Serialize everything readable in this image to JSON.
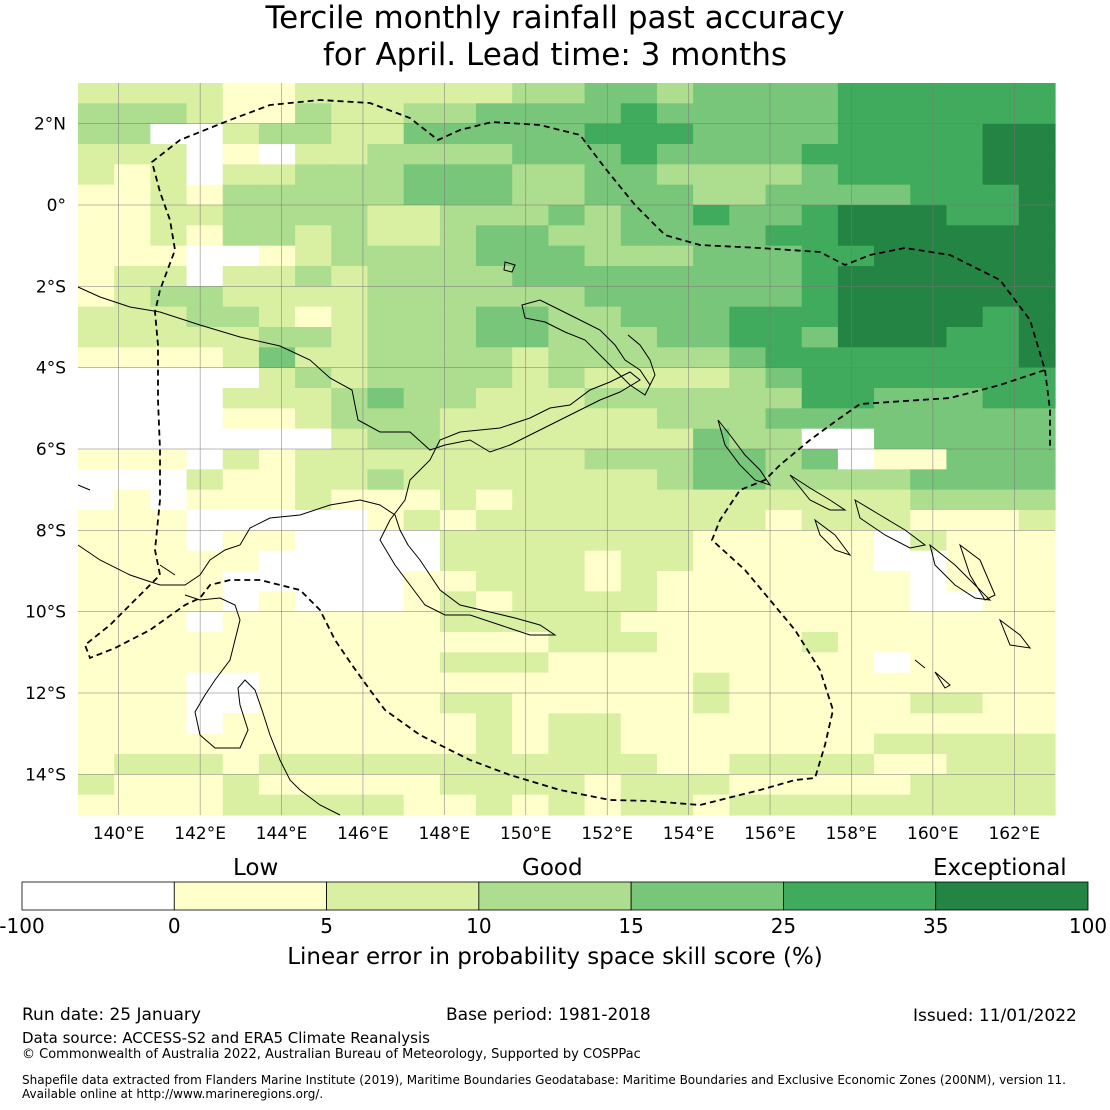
{
  "title_line1": "Tercile monthly rainfall past accuracy",
  "title_line2": "for April. Lead time: 3 months",
  "map_data": {
    "lon_range": [
      139,
      163
    ],
    "lat_range": [
      -15,
      3
    ],
    "lon_ticks": [
      "140°E",
      "142°E",
      "144°E",
      "146°E",
      "148°E",
      "150°E",
      "152°E",
      "154°E",
      "156°E",
      "158°E",
      "160°E",
      "162°E"
    ],
    "lat_ticks": [
      "2°N",
      "0°",
      "2°S",
      "4°S",
      "6°S",
      "8°S",
      "10°S",
      "12°S",
      "14°S"
    ],
    "class_grid": [
      "222211222222334434444555555",
      "333211322334444544444555555",
      "330023322444445554444555566",
      "222010223333444544445555566",
      "212022333444334433334555566",
      "112133333444334443344445556",
      "112233332233343445445666556",
      "112133232234433444455666666",
      "111001233334443334445566666",
      "122022323333444444445666666",
      "123322223333334444445666666",
      "222332123334433444555666656",
      "222223323334433344554666556",
      "111124223333233333455555556",
      "000002323333232222345555555",
      "000022234332223333335544455",
      "000011233322222233344444444",
      "000000023322222224330044444",
      "111021222222223334434011444",
      "000211223222222234433334444",
      "010111211121222222222223333",
      "111000001212222222212221112",
      "111011000022222221111102111",
      "111110000022221221111100111",
      "111100000112221211111110111",
      "111101000121222211111110011",
      "111011111122222111111111111",
      "111111111111122211112111111",
      "111111111122211111111101111",
      "111001111111111112111111111",
      "111001111122111112111112211",
      "111011111112122111111111111",
      "111111111112122111111122222",
      "122212222222222211222211222",
      "211121111122221222111112222",
      "111122222112121221222222222"
    ]
  },
  "colorbar": {
    "category_low": "Low",
    "category_good": "Good",
    "category_exceptional": "Exceptional",
    "bounds": [
      "-100",
      "0",
      "5",
      "10",
      "15",
      "25",
      "35",
      "100"
    ],
    "colors": [
      "#ffffff",
      "#ffffcc",
      "#d9f0a3",
      "#addd8e",
      "#78c679",
      "#41ab5d",
      "#238443"
    ],
    "label": "Linear error in probability space skill score (%)"
  },
  "footer": {
    "run_date": "Run date: 25 January",
    "base_period": "Base period: 1981-2018",
    "issued": "Issued: 11/01/2022",
    "data_source": "Data source: ACCESS-S2 and ERA5 Climate Reanalysis",
    "copyright": "© Commonwealth of Australia 2022, Australian Bureau of Meteorology, Supported by COSPPac",
    "shapefile_line1": "Shapefile data extracted from Flanders Marine Institute (2019), Maritime Boundaries Geodatabase: Maritime Boundaries and Exclusive Economic Zones (200NM), version 11.",
    "shapefile_line2": "Available online at http://www.marineregions.org/."
  }
}
